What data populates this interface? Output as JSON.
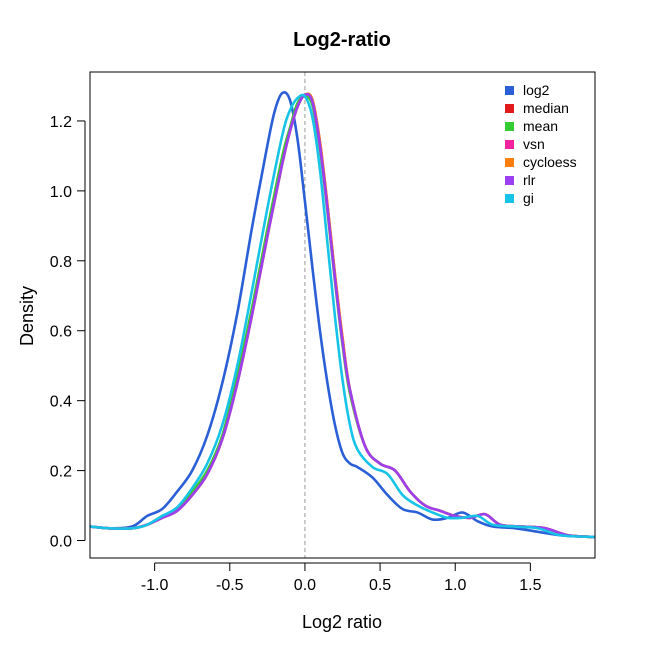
{
  "chart_data": {
    "type": "line",
    "title": "Log2-ratio",
    "xlabel": "Log2 ratio",
    "ylabel": "Density",
    "xlim": [
      -1.43,
      1.93
    ],
    "ylim": [
      -0.05,
      1.34
    ],
    "x_ticks": [
      -1.0,
      -0.5,
      0.0,
      0.5,
      1.0,
      1.5
    ],
    "x_tick_labels": [
      "-1.0",
      "-0.5",
      "0.0",
      "0.5",
      "1.0",
      "1.5"
    ],
    "y_ticks": [
      0.0,
      0.2,
      0.4,
      0.6,
      0.8,
      1.0,
      1.2
    ],
    "y_tick_labels": [
      "0.0",
      "0.2",
      "0.4",
      "0.6",
      "0.8",
      "1.0",
      "1.2"
    ],
    "reference_line_x": 0.0,
    "legend_position": "top-right",
    "series": [
      {
        "name": "log2",
        "color": "#2a5fd6",
        "x": [
          -1.43,
          -1.3,
          -1.15,
          -1.05,
          -0.95,
          -0.85,
          -0.75,
          -0.65,
          -0.55,
          -0.45,
          -0.35,
          -0.25,
          -0.2,
          -0.15,
          -0.1,
          -0.05,
          0.0,
          0.05,
          0.1,
          0.15,
          0.2,
          0.25,
          0.3,
          0.35,
          0.45,
          0.55,
          0.65,
          0.75,
          0.85,
          0.95,
          1.05,
          1.15,
          1.25,
          1.4,
          1.55,
          1.7,
          1.93
        ],
        "y": [
          0.04,
          0.035,
          0.04,
          0.07,
          0.09,
          0.14,
          0.2,
          0.3,
          0.45,
          0.65,
          0.9,
          1.13,
          1.23,
          1.28,
          1.26,
          1.15,
          0.97,
          0.78,
          0.6,
          0.45,
          0.33,
          0.25,
          0.22,
          0.21,
          0.18,
          0.13,
          0.09,
          0.08,
          0.06,
          0.065,
          0.08,
          0.055,
          0.04,
          0.035,
          0.025,
          0.015,
          0.01
        ]
      },
      {
        "name": "median",
        "color": "#e31a1c",
        "x": [
          -1.43,
          -1.3,
          -1.15,
          -1.05,
          -0.95,
          -0.85,
          -0.75,
          -0.65,
          -0.55,
          -0.45,
          -0.35,
          -0.25,
          -0.15,
          -0.1,
          -0.05,
          0.0,
          0.05,
          0.1,
          0.15,
          0.2,
          0.25,
          0.3,
          0.4,
          0.5,
          0.6,
          0.7,
          0.8,
          0.9,
          1.0,
          1.1,
          1.2,
          1.3,
          1.45,
          1.6,
          1.75,
          1.93
        ],
        "y": [
          0.04,
          0.035,
          0.035,
          0.045,
          0.065,
          0.085,
          0.13,
          0.19,
          0.29,
          0.45,
          0.65,
          0.87,
          1.08,
          1.17,
          1.24,
          1.275,
          1.26,
          1.14,
          0.96,
          0.76,
          0.58,
          0.43,
          0.27,
          0.22,
          0.2,
          0.14,
          0.1,
          0.085,
          0.07,
          0.065,
          0.075,
          0.045,
          0.04,
          0.035,
          0.015,
          0.01
        ]
      },
      {
        "name": "mean",
        "color": "#33cc33",
        "x": [
          -1.43,
          -1.3,
          -1.15,
          -1.05,
          -0.95,
          -0.85,
          -0.75,
          -0.65,
          -0.55,
          -0.45,
          -0.35,
          -0.25,
          -0.15,
          -0.1,
          -0.05,
          0.0,
          0.05,
          0.1,
          0.15,
          0.2,
          0.25,
          0.3,
          0.4,
          0.5,
          0.6,
          0.7,
          0.8,
          0.9,
          1.0,
          1.1,
          1.2,
          1.3,
          1.45,
          1.6,
          1.75,
          1.93
        ],
        "y": [
          0.04,
          0.035,
          0.035,
          0.045,
          0.07,
          0.09,
          0.14,
          0.2,
          0.3,
          0.47,
          0.67,
          0.89,
          1.1,
          1.18,
          1.25,
          1.27,
          1.245,
          1.12,
          0.94,
          0.74,
          0.56,
          0.42,
          0.27,
          0.22,
          0.2,
          0.14,
          0.1,
          0.085,
          0.07,
          0.065,
          0.075,
          0.045,
          0.04,
          0.035,
          0.015,
          0.01
        ]
      },
      {
        "name": "vsn",
        "color": "#f0229e",
        "x": [
          -1.43,
          -1.3,
          -1.15,
          -1.05,
          -0.95,
          -0.85,
          -0.75,
          -0.65,
          -0.55,
          -0.45,
          -0.35,
          -0.25,
          -0.15,
          -0.1,
          -0.05,
          0.0,
          0.05,
          0.1,
          0.15,
          0.2,
          0.25,
          0.3,
          0.4,
          0.5,
          0.6,
          0.7,
          0.8,
          0.9,
          1.0,
          1.1,
          1.2,
          1.3,
          1.45,
          1.6,
          1.75,
          1.93
        ],
        "y": [
          0.04,
          0.035,
          0.035,
          0.045,
          0.065,
          0.085,
          0.13,
          0.19,
          0.29,
          0.45,
          0.65,
          0.87,
          1.08,
          1.17,
          1.24,
          1.275,
          1.255,
          1.13,
          0.95,
          0.75,
          0.57,
          0.43,
          0.27,
          0.22,
          0.2,
          0.14,
          0.1,
          0.085,
          0.07,
          0.065,
          0.075,
          0.045,
          0.04,
          0.035,
          0.015,
          0.01
        ]
      },
      {
        "name": "cycloess",
        "color": "#ff7f0e",
        "x": [
          -1.43,
          -1.3,
          -1.15,
          -1.05,
          -0.95,
          -0.85,
          -0.75,
          -0.65,
          -0.55,
          -0.45,
          -0.35,
          -0.25,
          -0.15,
          -0.1,
          -0.05,
          0.0,
          0.05,
          0.1,
          0.15,
          0.2,
          0.25,
          0.3,
          0.4,
          0.5,
          0.6,
          0.7,
          0.8,
          0.9,
          1.0,
          1.1,
          1.2,
          1.3,
          1.45,
          1.6,
          1.75,
          1.93
        ],
        "y": [
          0.04,
          0.035,
          0.035,
          0.045,
          0.065,
          0.085,
          0.13,
          0.19,
          0.29,
          0.45,
          0.65,
          0.87,
          1.08,
          1.17,
          1.24,
          1.275,
          1.26,
          1.14,
          0.96,
          0.76,
          0.58,
          0.43,
          0.27,
          0.22,
          0.2,
          0.14,
          0.1,
          0.085,
          0.07,
          0.065,
          0.075,
          0.045,
          0.04,
          0.035,
          0.015,
          0.01
        ]
      },
      {
        "name": "rlr",
        "color": "#9b3ff0",
        "x": [
          -1.43,
          -1.3,
          -1.15,
          -1.05,
          -0.95,
          -0.85,
          -0.75,
          -0.65,
          -0.55,
          -0.45,
          -0.35,
          -0.25,
          -0.15,
          -0.1,
          -0.05,
          0.0,
          0.05,
          0.1,
          0.15,
          0.2,
          0.25,
          0.3,
          0.4,
          0.5,
          0.6,
          0.7,
          0.8,
          0.9,
          1.0,
          1.1,
          1.2,
          1.3,
          1.45,
          1.6,
          1.75,
          1.93
        ],
        "y": [
          0.04,
          0.035,
          0.035,
          0.045,
          0.065,
          0.085,
          0.13,
          0.19,
          0.29,
          0.45,
          0.65,
          0.87,
          1.08,
          1.17,
          1.24,
          1.275,
          1.255,
          1.13,
          0.95,
          0.75,
          0.57,
          0.43,
          0.27,
          0.22,
          0.2,
          0.14,
          0.1,
          0.085,
          0.07,
          0.065,
          0.075,
          0.045,
          0.04,
          0.035,
          0.015,
          0.01
        ]
      },
      {
        "name": "gi",
        "color": "#17c4e8",
        "x": [
          -1.43,
          -1.3,
          -1.15,
          -1.05,
          -0.95,
          -0.85,
          -0.75,
          -0.65,
          -0.55,
          -0.45,
          -0.35,
          -0.25,
          -0.15,
          -0.1,
          -0.05,
          0.0,
          0.05,
          0.1,
          0.15,
          0.2,
          0.25,
          0.3,
          0.35,
          0.45,
          0.55,
          0.65,
          0.75,
          0.85,
          0.95,
          1.05,
          1.15,
          1.25,
          1.4,
          1.55,
          1.7,
          1.93
        ],
        "y": [
          0.04,
          0.035,
          0.035,
          0.045,
          0.07,
          0.095,
          0.15,
          0.22,
          0.33,
          0.5,
          0.72,
          0.95,
          1.16,
          1.23,
          1.265,
          1.27,
          1.21,
          1.06,
          0.85,
          0.64,
          0.46,
          0.33,
          0.26,
          0.21,
          0.19,
          0.13,
          0.1,
          0.08,
          0.065,
          0.065,
          0.07,
          0.045,
          0.04,
          0.035,
          0.015,
          0.01
        ]
      }
    ]
  }
}
